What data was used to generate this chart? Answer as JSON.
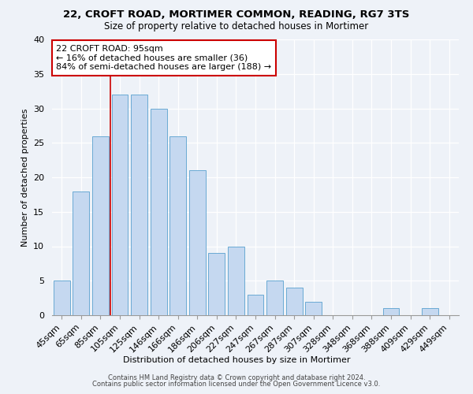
{
  "title1": "22, CROFT ROAD, MORTIMER COMMON, READING, RG7 3TS",
  "title2": "Size of property relative to detached houses in Mortimer",
  "xlabel": "Distribution of detached houses by size in Mortimer",
  "ylabel": "Number of detached properties",
  "categories": [
    "45sqm",
    "65sqm",
    "85sqm",
    "105sqm",
    "125sqm",
    "146sqm",
    "166sqm",
    "186sqm",
    "206sqm",
    "227sqm",
    "247sqm",
    "267sqm",
    "287sqm",
    "307sqm",
    "328sqm",
    "348sqm",
    "368sqm",
    "388sqm",
    "409sqm",
    "429sqm",
    "449sqm"
  ],
  "values": [
    5,
    18,
    26,
    32,
    32,
    30,
    26,
    21,
    9,
    10,
    3,
    5,
    4,
    2,
    0,
    0,
    0,
    1,
    0,
    1,
    0
  ],
  "bar_color": "#c5d8f0",
  "bar_edge_color": "#6aaad4",
  "vline_x_idx": 2.5,
  "annotation_text": "22 CROFT ROAD: 95sqm\n← 16% of detached houses are smaller (36)\n84% of semi-detached houses are larger (188) →",
  "annotation_box_color": "#ffffff",
  "annotation_edge_color": "#cc0000",
  "vline_color": "#cc0000",
  "ylim": [
    0,
    40
  ],
  "yticks": [
    0,
    5,
    10,
    15,
    20,
    25,
    30,
    35,
    40
  ],
  "footer1": "Contains HM Land Registry data © Crown copyright and database right 2024.",
  "footer2": "Contains public sector information licensed under the Open Government Licence v3.0.",
  "bg_color": "#eef2f8",
  "title_fontsize": 9.5,
  "subtitle_fontsize": 8.5,
  "axis_label_fontsize": 8,
  "tick_fontsize": 8,
  "annot_fontsize": 8,
  "footer_fontsize": 6
}
